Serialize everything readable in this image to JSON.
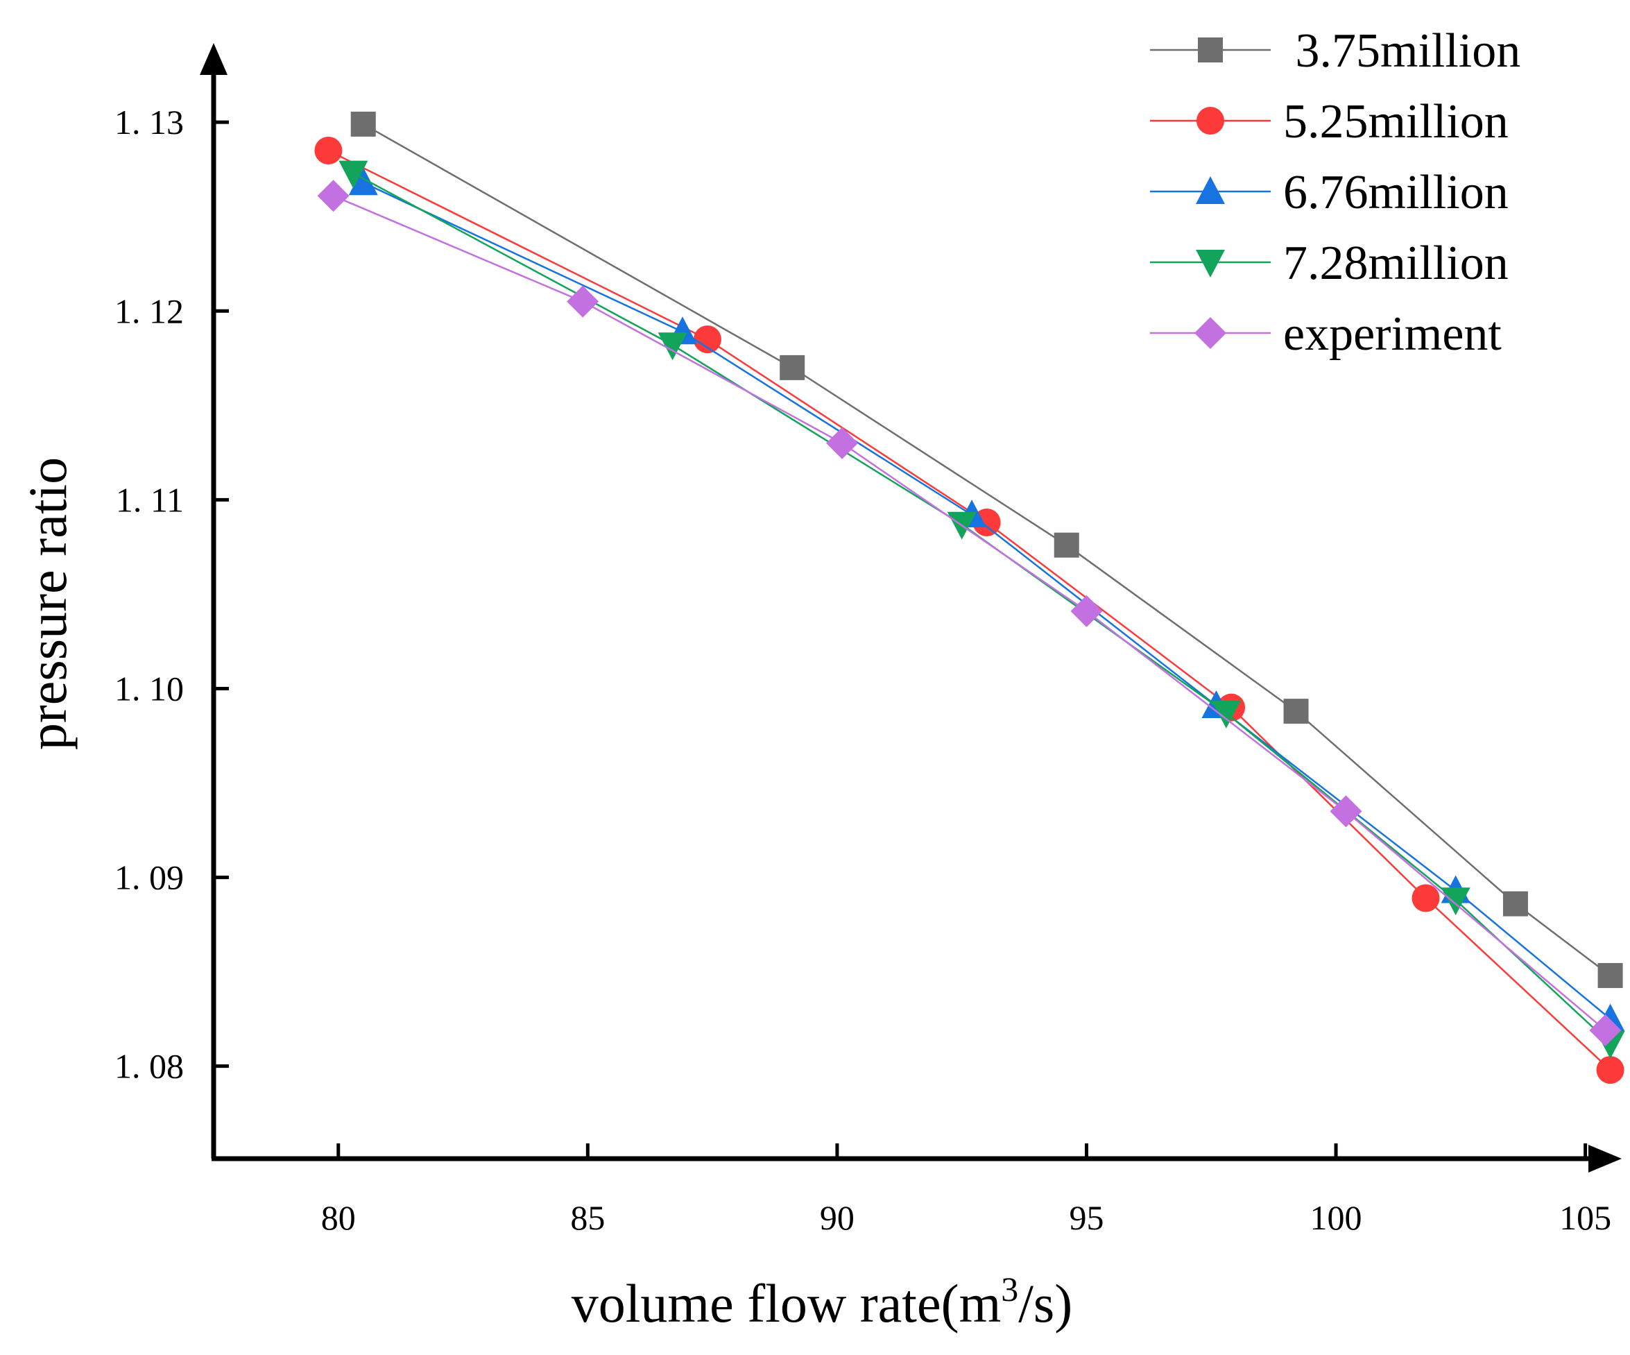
{
  "chart_data": {
    "type": "line",
    "title": "",
    "xlabel_main": "volume flow rate(m",
    "xlabel_sup": "3",
    "xlabel_tail": "/s)",
    "ylabel": "pressure ratio",
    "xlim": [
      77.5,
      105.2
    ],
    "ylim": [
      1.0751,
      1.1328
    ],
    "x_ticks": [
      80,
      85,
      90,
      95,
      100,
      105
    ],
    "x_tick_labels": [
      "80",
      "85",
      "90",
      "95",
      "100",
      "105"
    ],
    "y_ticks": [
      1.08,
      1.09,
      1.1,
      1.11,
      1.12,
      1.13
    ],
    "y_tick_labels": [
      "1. 08",
      "1. 09",
      "1. 10",
      "1. 11",
      "1. 12",
      "1. 13"
    ],
    "grid": false,
    "legend_position": "top-right",
    "series": [
      {
        "name": " 3.75million",
        "color": "#6e6e6e",
        "marker": "square",
        "x": [
          80.5,
          89.1,
          94.6,
          99.2,
          103.6,
          105.5
        ],
        "y": [
          1.1299,
          1.117,
          1.1076,
          1.0988,
          1.0886,
          1.0848
        ]
      },
      {
        "name": "5.25million",
        "color": "#fc3a3a",
        "marker": "circle",
        "x": [
          79.8,
          87.4,
          93.0,
          97.9,
          101.8,
          105.5
        ],
        "y": [
          1.1285,
          1.1185,
          1.1088,
          1.099,
          1.0889,
          1.0798
        ]
      },
      {
        "name": "6.76million",
        "color": "#1673e0",
        "marker": "triangle-up",
        "x": [
          80.5,
          86.9,
          92.7,
          97.6,
          102.4,
          105.5
        ],
        "y": [
          1.1268,
          1.1189,
          1.1092,
          1.0991,
          1.0893,
          1.0825
        ]
      },
      {
        "name": "7.28million",
        "color": "#12a45a",
        "marker": "triangle-down",
        "x": [
          80.3,
          86.7,
          92.5,
          97.8,
          102.4,
          105.5
        ],
        "y": [
          1.1273,
          1.1182,
          1.1087,
          1.0987,
          1.0888,
          1.0812
        ]
      },
      {
        "name": "experiment",
        "color": "#c371e0",
        "marker": "diamond",
        "x": [
          79.9,
          84.9,
          90.1,
          95.0,
          100.2,
          105.4
        ],
        "y": [
          1.1261,
          1.1205,
          1.113,
          1.1041,
          1.0935,
          1.0819
        ]
      }
    ]
  }
}
